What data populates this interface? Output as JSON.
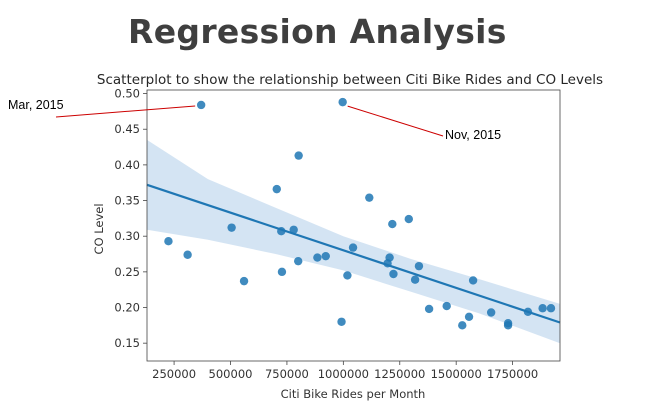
{
  "slide": {
    "title": "Regression Analysis"
  },
  "chart_data": {
    "type": "scatter",
    "title": "Scatterplot to show the relationship between Citi Bike Rides and CO Levels",
    "xlabel": "Citi Bike Rides per Month",
    "ylabel": "CO Level",
    "xlim": [
      130000,
      1960000
    ],
    "ylim": [
      0.125,
      0.505
    ],
    "xticks": [
      250000,
      500000,
      750000,
      1000000,
      1250000,
      1500000,
      1750000
    ],
    "yticks": [
      0.15,
      0.2,
      0.25,
      0.3,
      0.35,
      0.4,
      0.45,
      0.5
    ],
    "xtick_labels": [
      "250000",
      "500000",
      "750000",
      "1000000",
      "1250000",
      "1500000",
      "1750000"
    ],
    "ytick_labels": [
      "0.15",
      "0.20",
      "0.25",
      "0.30",
      "0.35",
      "0.40",
      "0.45",
      "0.50"
    ],
    "grid": false,
    "points": [
      {
        "x": 225000,
        "y": 0.293
      },
      {
        "x": 310000,
        "y": 0.274
      },
      {
        "x": 370000,
        "y": 0.484
      },
      {
        "x": 505000,
        "y": 0.312
      },
      {
        "x": 560000,
        "y": 0.237
      },
      {
        "x": 705000,
        "y": 0.366
      },
      {
        "x": 725000,
        "y": 0.307
      },
      {
        "x": 728000,
        "y": 0.25
      },
      {
        "x": 780000,
        "y": 0.309
      },
      {
        "x": 800000,
        "y": 0.265
      },
      {
        "x": 802000,
        "y": 0.413
      },
      {
        "x": 885000,
        "y": 0.27
      },
      {
        "x": 922000,
        "y": 0.272
      },
      {
        "x": 992000,
        "y": 0.18
      },
      {
        "x": 997000,
        "y": 0.488
      },
      {
        "x": 1018000,
        "y": 0.245
      },
      {
        "x": 1043000,
        "y": 0.284
      },
      {
        "x": 1115000,
        "y": 0.354
      },
      {
        "x": 1196000,
        "y": 0.262
      },
      {
        "x": 1205000,
        "y": 0.27
      },
      {
        "x": 1217000,
        "y": 0.317
      },
      {
        "x": 1222000,
        "y": 0.247
      },
      {
        "x": 1290000,
        "y": 0.324
      },
      {
        "x": 1318000,
        "y": 0.239
      },
      {
        "x": 1335000,
        "y": 0.258
      },
      {
        "x": 1380000,
        "y": 0.198
      },
      {
        "x": 1458000,
        "y": 0.202
      },
      {
        "x": 1527000,
        "y": 0.175
      },
      {
        "x": 1557000,
        "y": 0.187
      },
      {
        "x": 1575000,
        "y": 0.238
      },
      {
        "x": 1655000,
        "y": 0.193
      },
      {
        "x": 1730000,
        "y": 0.178
      },
      {
        "x": 1730000,
        "y": 0.175
      },
      {
        "x": 1818000,
        "y": 0.194
      },
      {
        "x": 1883000,
        "y": 0.199
      },
      {
        "x": 1920000,
        "y": 0.199
      }
    ],
    "regression": {
      "x": [
        130000,
        1960000
      ],
      "y": [
        0.372,
        0.179
      ]
    },
    "confidence_band": {
      "x": [
        130000,
        400000,
        700000,
        1000000,
        1300000,
        1600000,
        1960000
      ],
      "upper": [
        0.435,
        0.38,
        0.34,
        0.3,
        0.268,
        0.24,
        0.205
      ],
      "lower": [
        0.309,
        0.295,
        0.275,
        0.252,
        0.222,
        0.192,
        0.15
      ]
    },
    "annotations": [
      {
        "text": "Mar, 2015",
        "x": 370000,
        "y": 0.484
      },
      {
        "text": "Nov, 2015",
        "x": 997000,
        "y": 0.488
      }
    ],
    "colors": {
      "points": "#1f77b4",
      "line": "#1f77b4",
      "band": "#c6dbef",
      "annotation_line": "#cc0000"
    }
  }
}
